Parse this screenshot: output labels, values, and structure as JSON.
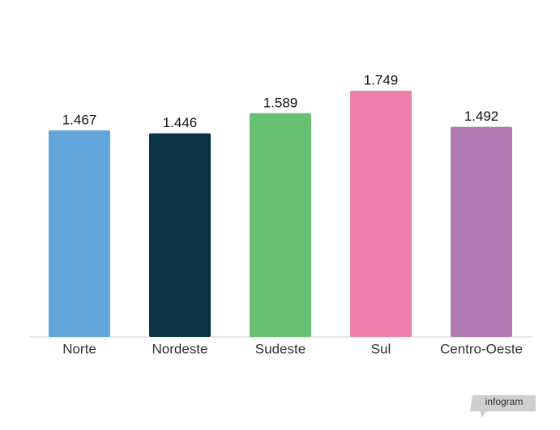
{
  "chart_data": {
    "type": "bar",
    "categories": [
      "Norte",
      "Nordeste",
      "Sudeste",
      "Sul",
      "Centro-Oeste"
    ],
    "values": [
      1467,
      1446,
      1589,
      1749,
      1492
    ],
    "value_labels": [
      "1.467",
      "1.446",
      "1.589",
      "1.749",
      "1.492"
    ],
    "colors": [
      "#62a6db",
      "#0a3444",
      "#68c072",
      "#ee7fad",
      "#b079b2"
    ]
  },
  "brand": "infogram"
}
